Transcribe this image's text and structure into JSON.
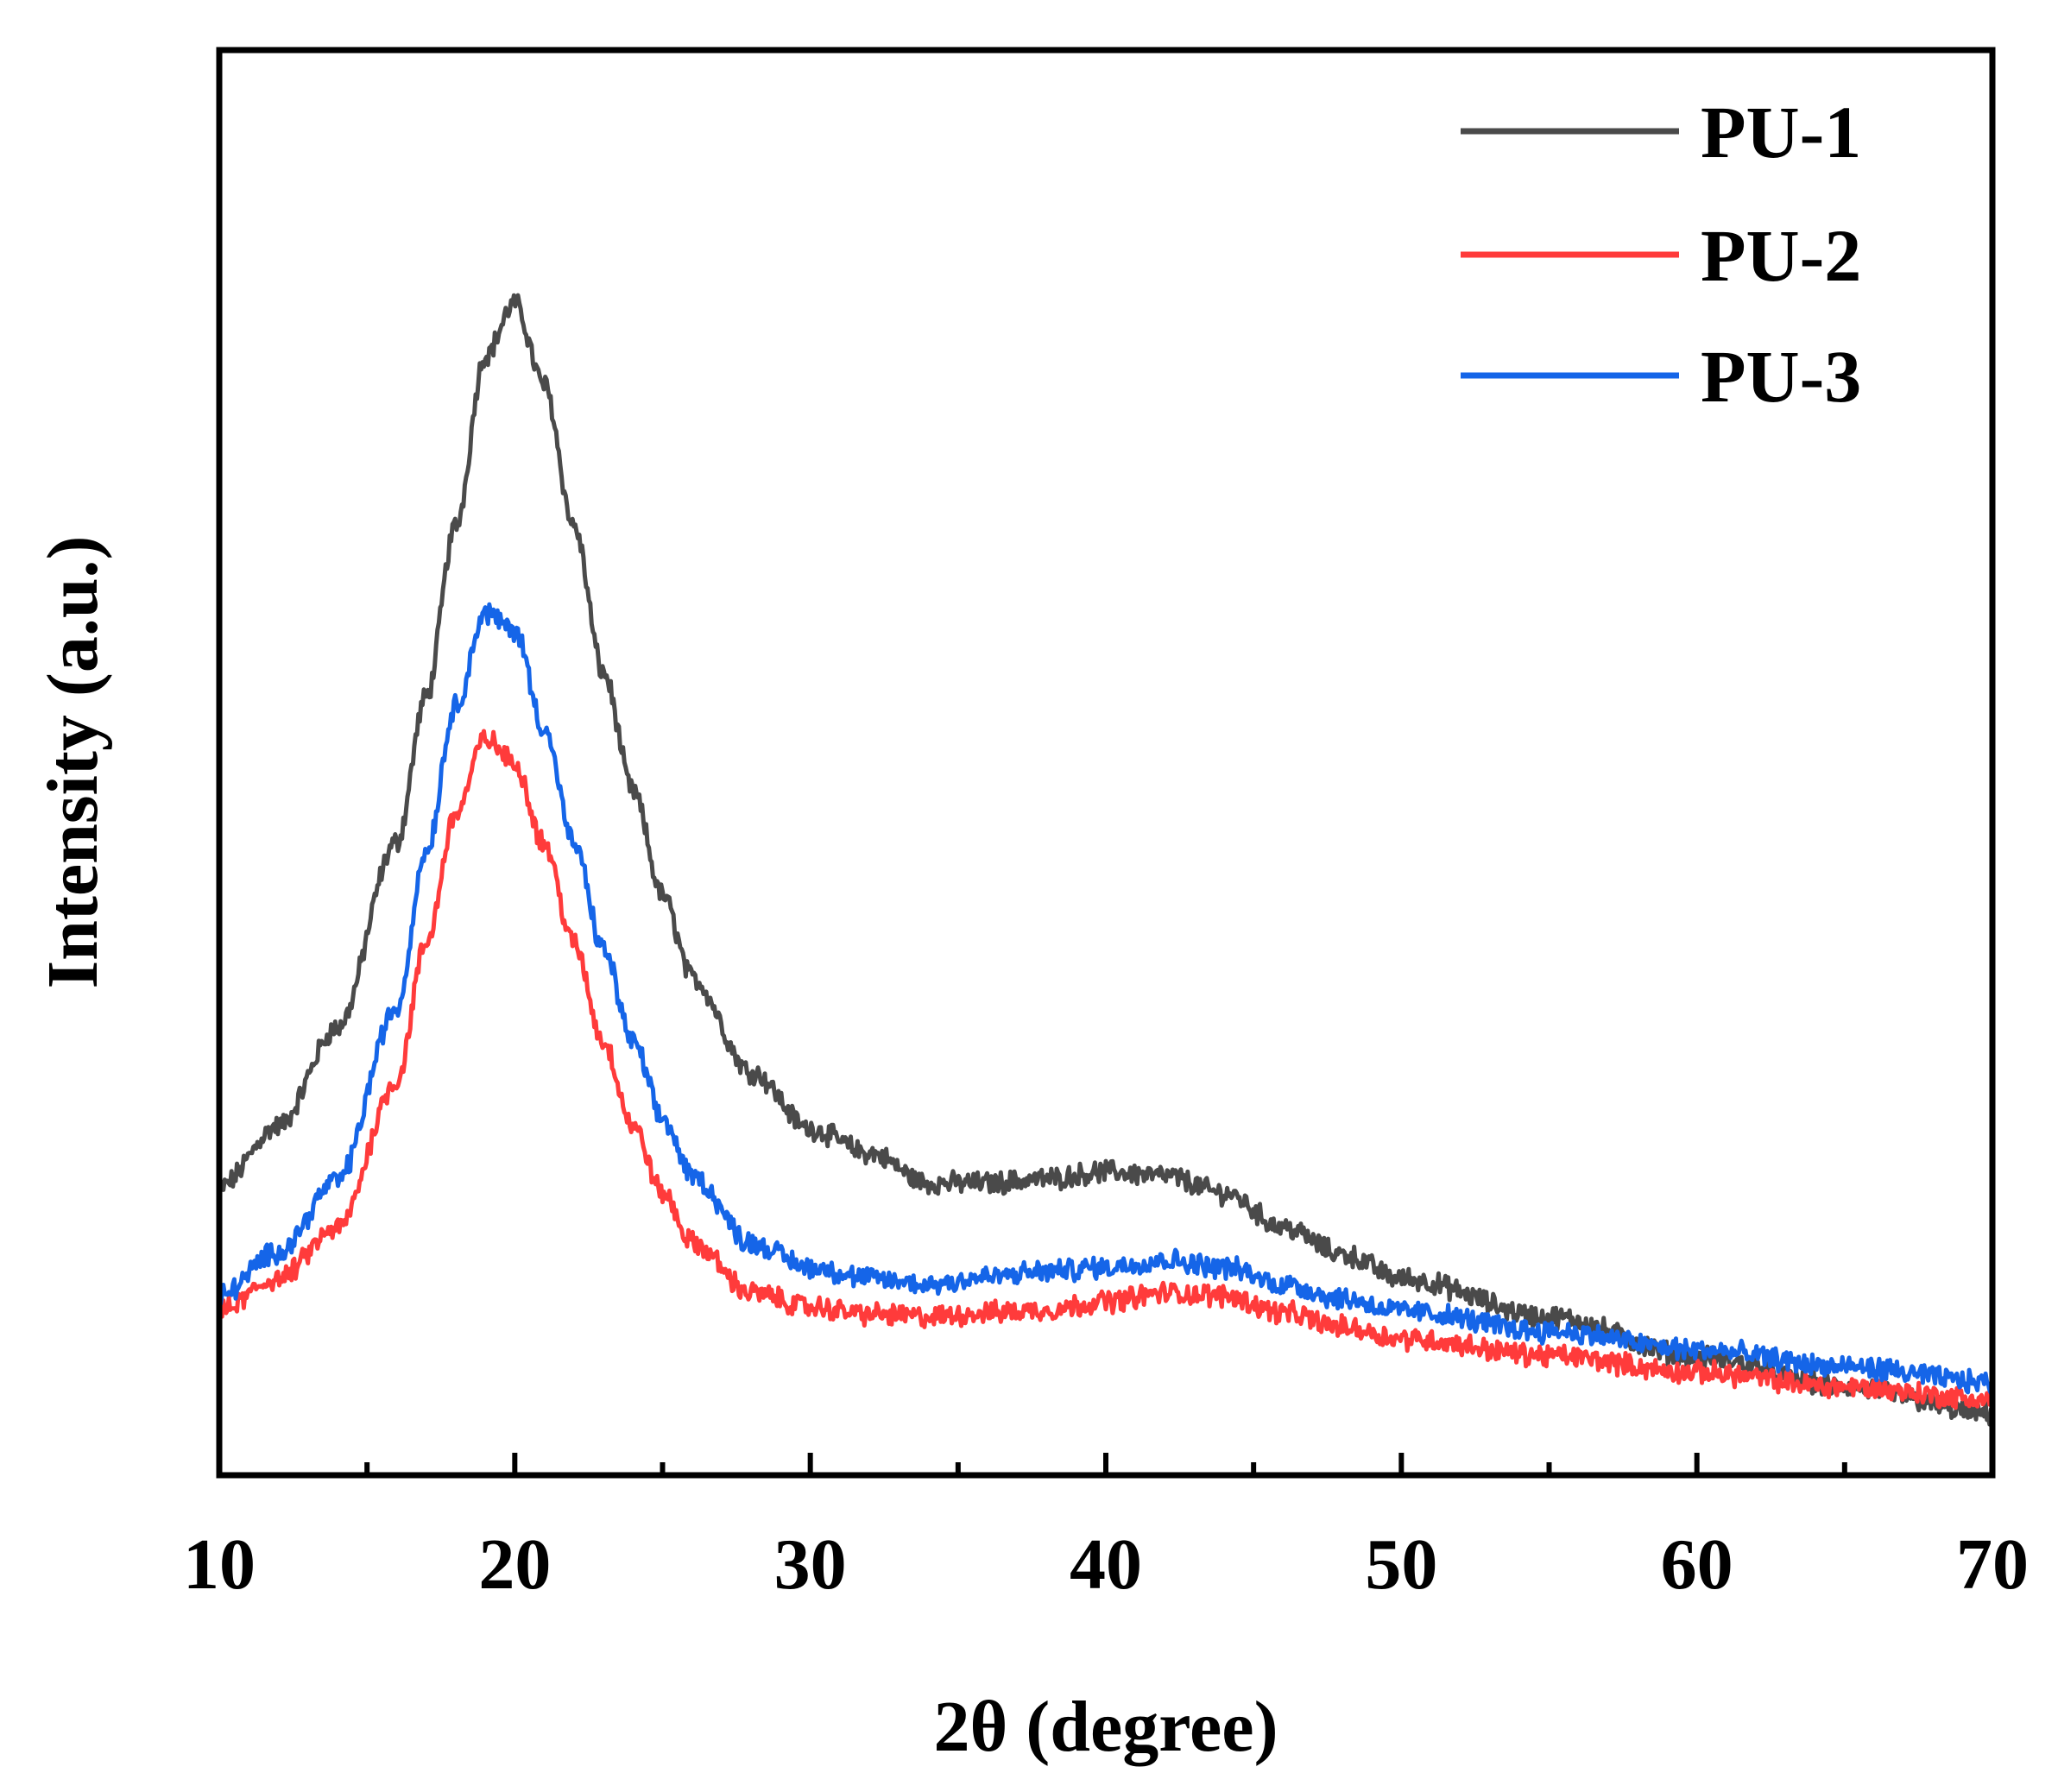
{
  "chart_data": {
    "type": "line",
    "title": "",
    "xlabel": "2θ (degree)",
    "ylabel": "Intensity (a.u.)",
    "xlim": [
      10,
      70
    ],
    "ylim": [
      0,
      100
    ],
    "x_ticks": [
      10,
      20,
      30,
      40,
      50,
      60,
      70
    ],
    "x_tick_labels": [
      "10",
      "20",
      "30",
      "40",
      "50",
      "60",
      "70"
    ],
    "y_ticks_shown": false,
    "grid": false,
    "legend_position": "top-right",
    "series": [
      {
        "name": "PU-1",
        "color": "#4a4a4a",
        "x": [
          10,
          12,
          14,
          16,
          17,
          18,
          19,
          20,
          21,
          22,
          23,
          24,
          25,
          26,
          28,
          30,
          32,
          34,
          36,
          38,
          40,
          42,
          44,
          46,
          48,
          50,
          55,
          60,
          65,
          70
        ],
        "y": [
          20.2,
          24.5,
          31.4,
          44.4,
          54.6,
          66.6,
          78.6,
          82.2,
          76.5,
          66.6,
          56.3,
          48.0,
          40.7,
          34.9,
          28.3,
          24.3,
          22.6,
          20.5,
          20.5,
          20.8,
          21.3,
          21.0,
          19.8,
          17.4,
          15.5,
          13.8,
          11.1,
          8.3,
          6.2,
          4.3
        ]
      },
      {
        "name": "PU-2",
        "color": "#ff3b3b",
        "x": [
          10,
          12,
          14,
          16,
          17,
          18,
          19,
          20,
          21,
          22,
          23,
          24,
          25,
          26,
          28,
          30,
          32,
          34,
          36,
          38,
          40,
          42,
          44,
          46,
          48,
          50,
          55,
          60,
          65,
          70
        ],
        "y": [
          11.5,
          13.8,
          17.3,
          27.6,
          37.3,
          46.4,
          51.7,
          50.0,
          44.3,
          37.3,
          30.4,
          24.5,
          19.8,
          16.3,
          12.8,
          11.8,
          11.3,
          11.1,
          11.4,
          11.6,
          12.2,
          12.8,
          12.6,
          11.4,
          10.4,
          9.6,
          8.4,
          7.2,
          6.2,
          5.3
        ]
      },
      {
        "name": "PU-3",
        "color": "#1565e8",
        "x": [
          10,
          12,
          14,
          16,
          17,
          18,
          19,
          20,
          21,
          22,
          23,
          24,
          25,
          26,
          28,
          30,
          32,
          34,
          36,
          38,
          40,
          42,
          44,
          46,
          48,
          50,
          55,
          60,
          65,
          70
        ],
        "y": [
          12.6,
          15.7,
          20.7,
          32.7,
          43.8,
          54.0,
          60.5,
          59.3,
          52.4,
          44.3,
          36.9,
          30.4,
          25.0,
          21.0,
          16.3,
          14.6,
          13.8,
          13.4,
          13.9,
          14.3,
          14.6,
          15.1,
          14.6,
          13.4,
          12.4,
          11.5,
          10.1,
          8.8,
          7.6,
          6.5
        ]
      }
    ]
  }
}
